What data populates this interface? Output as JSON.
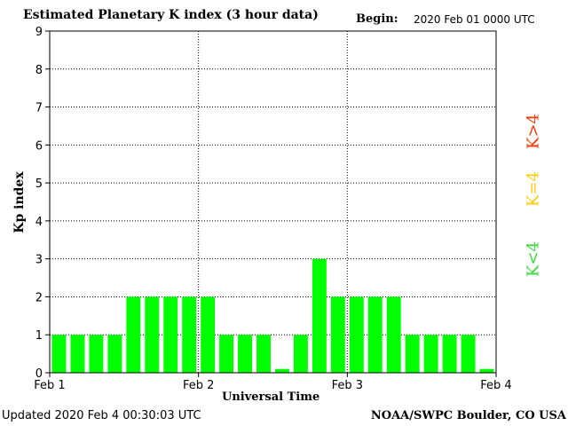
{
  "header": {
    "title": "Estimated Planetary K index (3 hour data)",
    "begin_label": "Begin:",
    "begin_value": "2020 Feb 01 0000 UTC"
  },
  "footer": {
    "updated": "Updated 2020 Feb  4 00:30:03 UTC",
    "source": "NOAA/SWPC Boulder, CO USA"
  },
  "legend": [
    {
      "label": "K>4",
      "color": "#ff3300"
    },
    {
      "label": "K=4",
      "color": "#ffcc00"
    },
    {
      "label": "K<4",
      "color": "#33dd33"
    }
  ],
  "chart_data": {
    "type": "bar",
    "xlabel": "Universal Time",
    "ylabel": "Kp index",
    "ylim": [
      0,
      9
    ],
    "yticks": [
      "0",
      "1",
      "2",
      "3",
      "4",
      "5",
      "6",
      "7",
      "8",
      "9"
    ],
    "xtick_labels": [
      "Feb 1",
      "Feb 2",
      "Feb 3",
      "Feb 4"
    ],
    "bar_color": "#00ff00",
    "grid": true,
    "values": [
      1,
      1,
      1,
      1,
      2,
      2,
      2,
      2,
      2,
      1,
      1,
      1,
      0.1,
      1,
      3,
      2,
      2,
      2,
      2,
      1,
      1,
      1,
      1,
      0.1
    ]
  }
}
